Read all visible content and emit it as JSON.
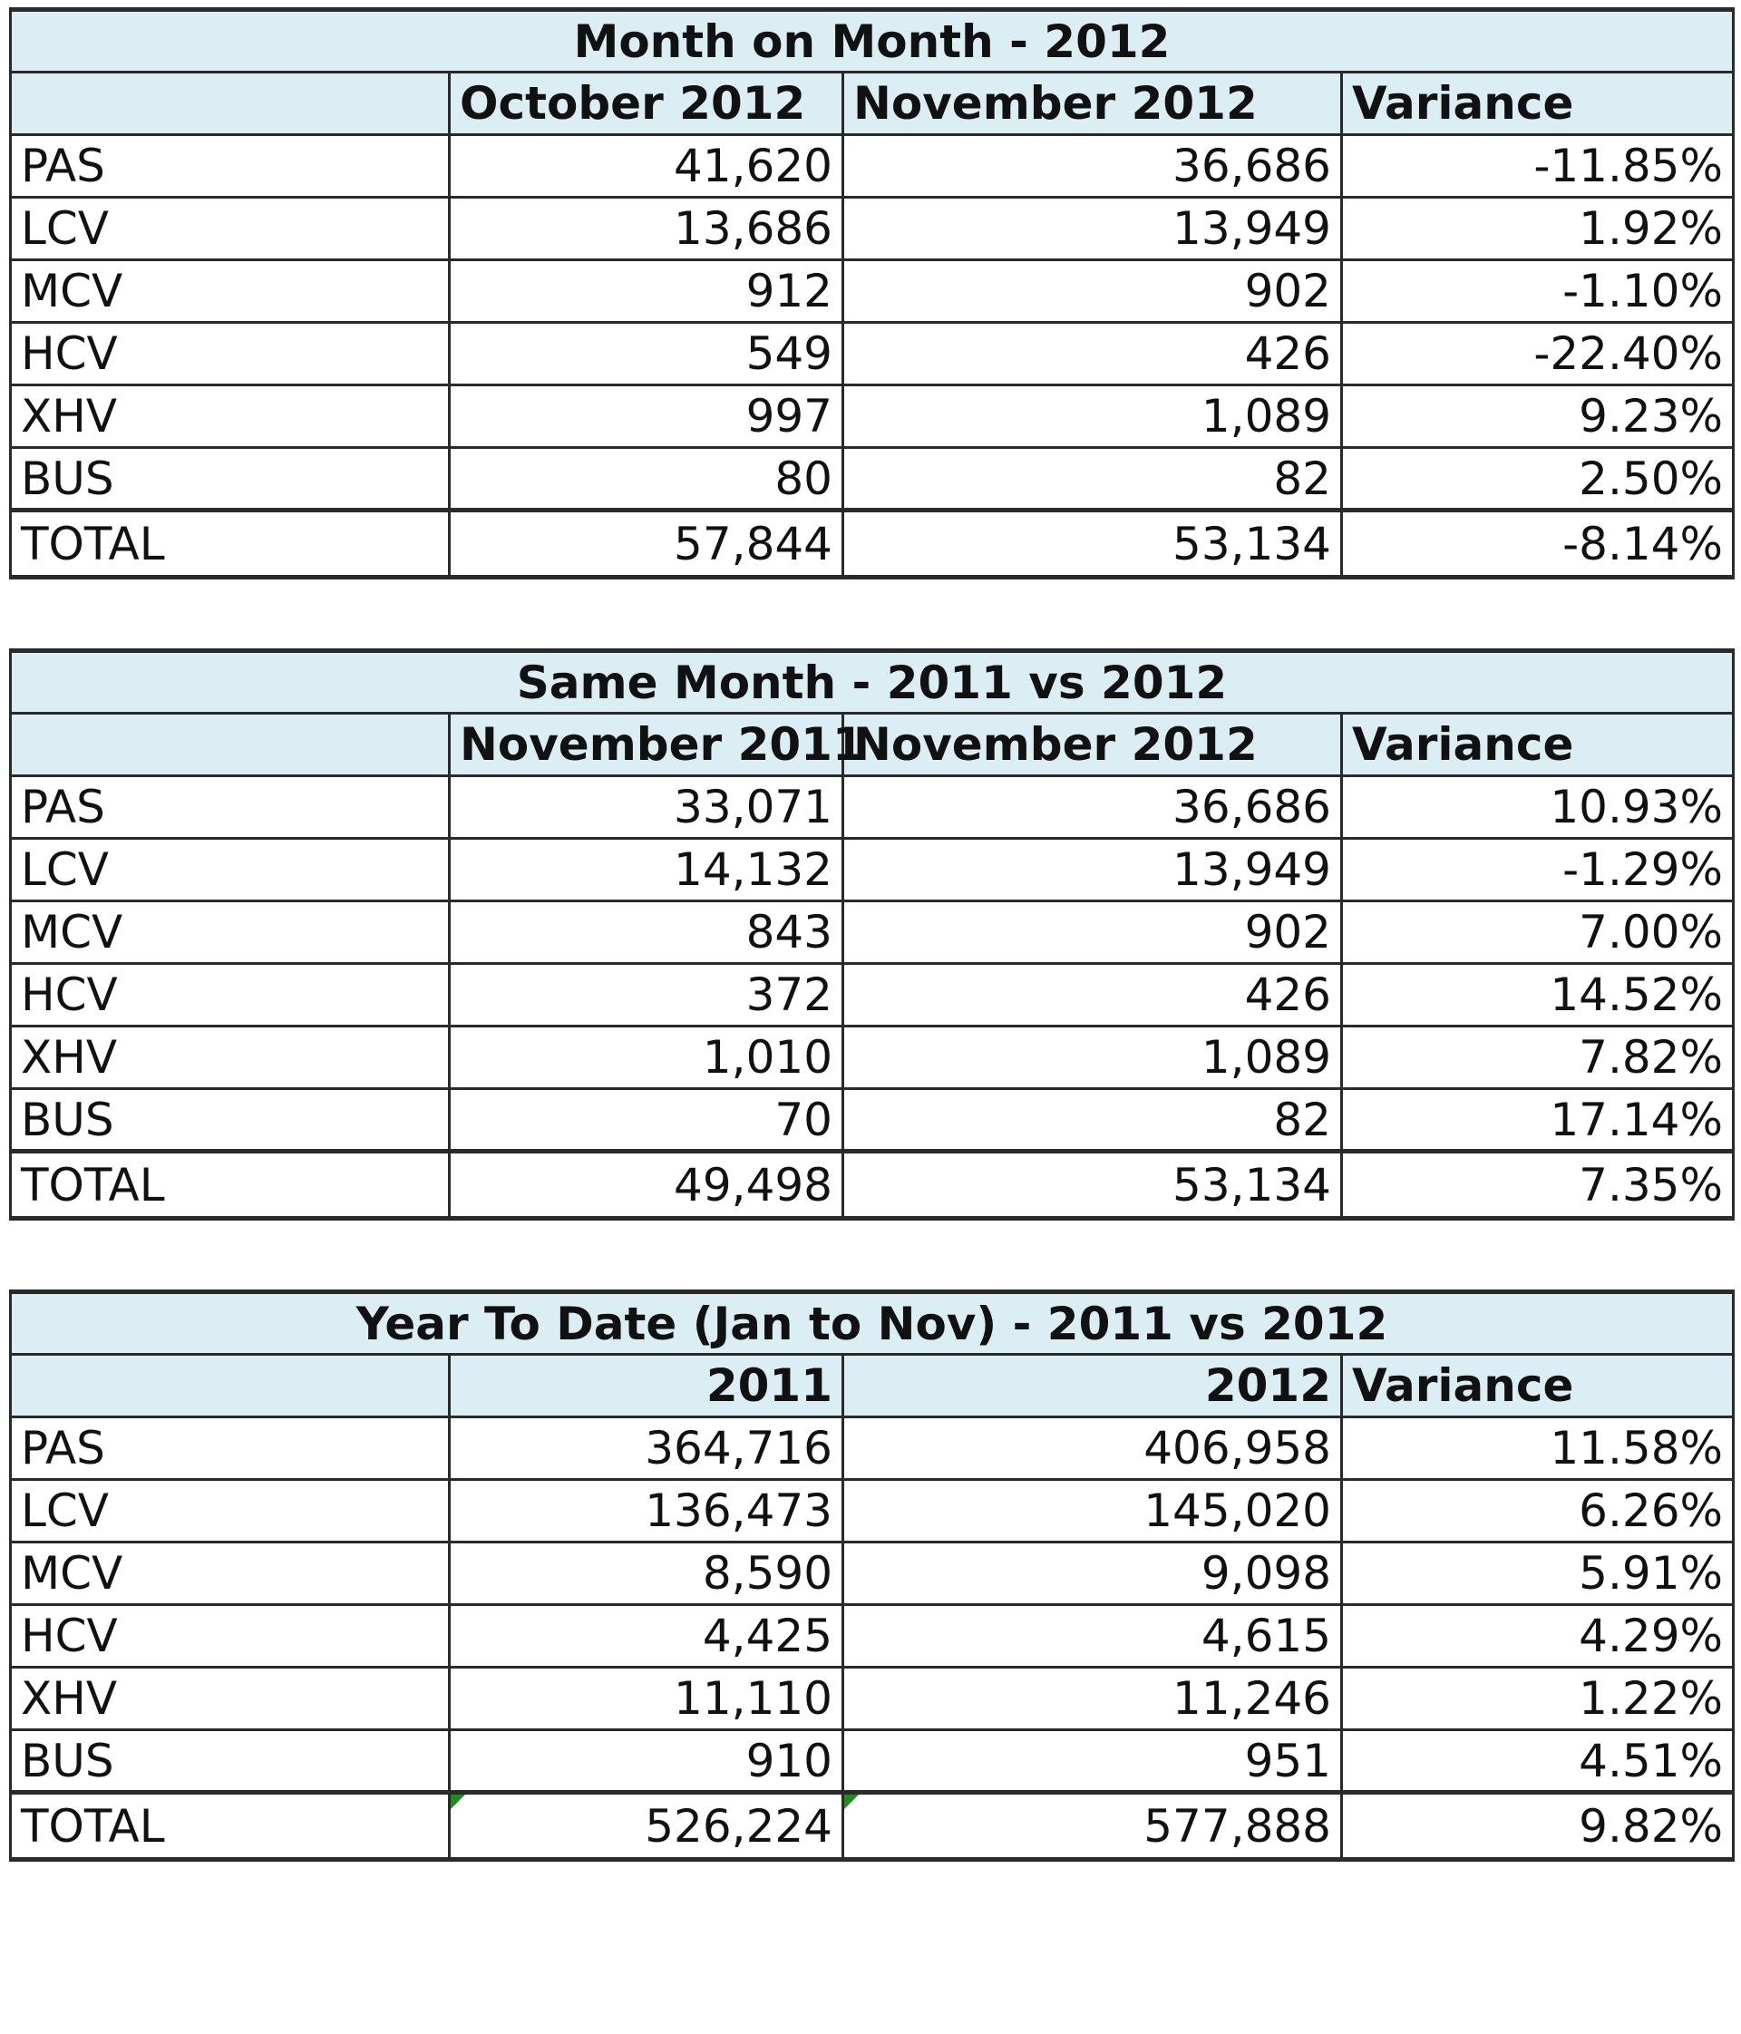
{
  "chart_data": [
    {
      "type": "table",
      "title": "Month on Month - 2012",
      "columns": [
        "",
        "October 2012",
        "November 2012",
        "Variance"
      ],
      "rows": [
        {
          "label": "PAS",
          "values": [
            "41,620",
            "36,686",
            "-11.85%"
          ]
        },
        {
          "label": "LCV",
          "values": [
            "13,686",
            "13,949",
            "1.92%"
          ]
        },
        {
          "label": "MCV",
          "values": [
            "912",
            "902",
            "-1.10%"
          ]
        },
        {
          "label": "HCV",
          "values": [
            "549",
            "426",
            "-22.40%"
          ]
        },
        {
          "label": "XHV",
          "values": [
            "997",
            "1,089",
            "9.23%"
          ]
        },
        {
          "label": "BUS",
          "values": [
            "80",
            "82",
            "2.50%"
          ]
        },
        {
          "label": "TOTAL",
          "values": [
            "57,844",
            "53,134",
            "-8.14%"
          ]
        }
      ]
    },
    {
      "type": "table",
      "title": "Same Month - 2011 vs 2012",
      "columns": [
        "",
        "November 2011",
        "November 2012",
        "Variance"
      ],
      "rows": [
        {
          "label": "PAS",
          "values": [
            "33,071",
            "36,686",
            "10.93%"
          ]
        },
        {
          "label": "LCV",
          "values": [
            "14,132",
            "13,949",
            "-1.29%"
          ]
        },
        {
          "label": "MCV",
          "values": [
            "843",
            "902",
            "7.00%"
          ]
        },
        {
          "label": "HCV",
          "values": [
            "372",
            "426",
            "14.52%"
          ]
        },
        {
          "label": "XHV",
          "values": [
            "1,010",
            "1,089",
            "7.82%"
          ]
        },
        {
          "label": "BUS",
          "values": [
            "70",
            "82",
            "17.14%"
          ]
        },
        {
          "label": "TOTAL",
          "values": [
            "49,498",
            "53,134",
            "7.35%"
          ]
        }
      ]
    },
    {
      "type": "table",
      "title": "Year To Date (Jan to Nov) - 2011 vs 2012",
      "columns": [
        "",
        "2011",
        "2012",
        "Variance"
      ],
      "rows": [
        {
          "label": "PAS",
          "values": [
            "364,716",
            "406,958",
            "11.58%"
          ]
        },
        {
          "label": "LCV",
          "values": [
            "136,473",
            "145,020",
            "6.26%"
          ]
        },
        {
          "label": "MCV",
          "values": [
            "8,590",
            "9,098",
            "5.91%"
          ]
        },
        {
          "label": "HCV",
          "values": [
            "4,425",
            "4,615",
            "4.29%"
          ]
        },
        {
          "label": "XHV",
          "values": [
            "11,110",
            "11,246",
            "1.22%"
          ]
        },
        {
          "label": "BUS",
          "values": [
            "910",
            "951",
            "4.51%"
          ]
        },
        {
          "label": "TOTAL",
          "values": [
            "526,224",
            "577,888",
            "9.82%"
          ]
        }
      ]
    }
  ],
  "colors": {
    "header_fill": "#daeef3",
    "grid_line": "#2a2a2a",
    "error_marker": "#1f8a1f"
  }
}
